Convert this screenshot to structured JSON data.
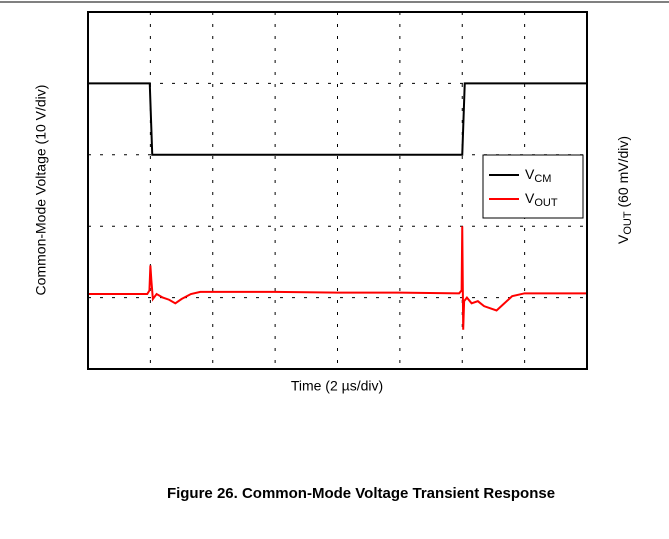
{
  "chart_data": {
    "type": "line",
    "xlabel": "Time (2 µs/div)",
    "ylabel": "Common-Mode Voltage (10 V/div)",
    "y2label": "VOUT (60 mV/div)",
    "caption": "Figure 26. Common-Mode Voltage Transient Response",
    "xlim": [
      0,
      16
    ],
    "ylim": [
      0,
      5
    ],
    "xticks": [
      0,
      2,
      4,
      6,
      8,
      10,
      12,
      14,
      16
    ],
    "yticks": [
      0,
      1,
      2,
      3,
      4,
      5
    ],
    "grid": true,
    "legend": "right",
    "series": [
      {
        "name": "VCM",
        "color": "#000000",
        "x": [
          0,
          1.98,
          2.06,
          12.0,
          12.08,
          16
        ],
        "values": [
          4,
          4,
          3,
          3,
          4,
          4
        ]
      },
      {
        "name": "VOUT",
        "color": "#ff0000",
        "x": [
          0,
          1.9,
          1.97,
          2.0,
          2.03,
          2.08,
          2.2,
          2.4,
          2.6,
          2.8,
          3.0,
          3.3,
          3.6,
          4.0,
          6,
          8,
          10,
          11.9,
          11.98,
          12.0,
          12.03,
          12.06,
          12.15,
          12.3,
          12.5,
          12.7,
          12.9,
          13.1,
          13.3,
          13.6,
          14,
          16
        ],
        "values": [
          1.05,
          1.05,
          1.1,
          1.45,
          1.25,
          0.98,
          1.05,
          1.0,
          0.97,
          0.92,
          0.98,
          1.05,
          1.08,
          1.08,
          1.08,
          1.07,
          1.07,
          1.06,
          1.1,
          2.0,
          0.55,
          0.95,
          1.0,
          0.92,
          0.95,
          0.88,
          0.85,
          0.82,
          0.9,
          1.02,
          1.06,
          1.06
        ]
      }
    ]
  }
}
